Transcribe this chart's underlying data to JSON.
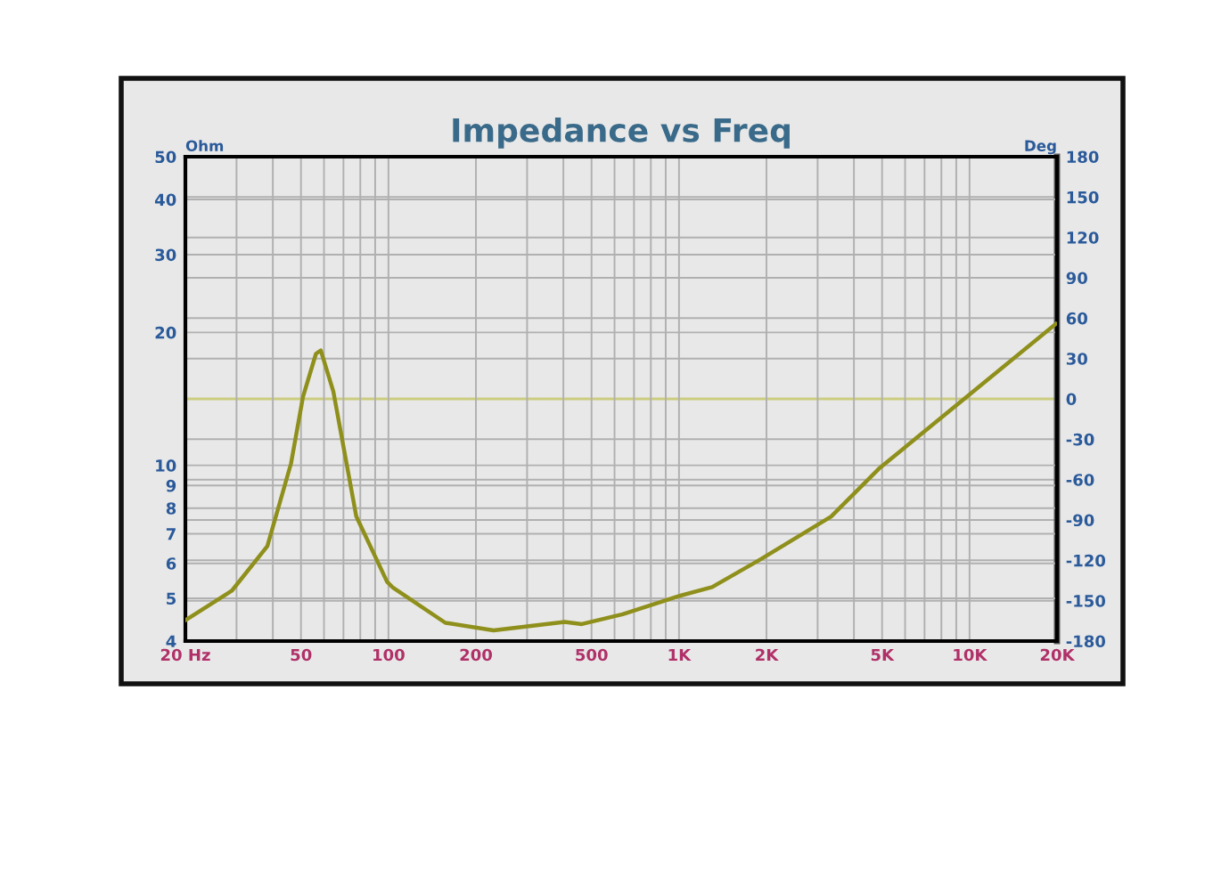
{
  "chart_data": {
    "type": "line",
    "title": "Impedance vs Freq",
    "ylabel": "Ohm",
    "y2label": "Deg",
    "x": [
      20,
      28.9,
      38.3,
      46.2,
      50.8,
      56.3,
      58.5,
      64.6,
      77.5,
      98.9,
      103.8,
      157,
      230,
      404,
      463,
      640,
      990,
      1300,
      1910,
      3340,
      4870,
      9400,
      19800
    ],
    "series": [
      {
        "color": "#8f8f1c",
        "values": [
          4.46,
          5.2,
          6.56,
          10.1,
          14.3,
          17.9,
          18.2,
          14.7,
          7.66,
          5.45,
          5.28,
          4.4,
          4.23,
          4.42,
          4.37,
          4.6,
          5.05,
          5.3,
          6.13,
          7.66,
          9.82,
          14.0,
          20.9
        ]
      }
    ],
    "log": "xy",
    "xlim": [
      20,
      20000
    ],
    "ylim": [
      4,
      50
    ],
    "y2lim": [
      -180,
      180
    ],
    "xticks": [
      {
        "value": 20,
        "label": "20 Hz"
      },
      {
        "value": 30,
        "label": null
      },
      {
        "value": 40,
        "label": null
      },
      50,
      {
        "value": 60,
        "label": null
      },
      {
        "value": 70,
        "label": null
      },
      {
        "value": 80,
        "label": null
      },
      {
        "value": 90,
        "label": null
      },
      100,
      200,
      {
        "value": 300,
        "label": null
      },
      {
        "value": 400,
        "label": null
      },
      500,
      {
        "value": 600,
        "label": null
      },
      {
        "value": 700,
        "label": null
      },
      {
        "value": 800,
        "label": null
      },
      {
        "value": 900,
        "label": null
      },
      {
        "value": 1000,
        "label": "1K"
      },
      {
        "value": 2000,
        "label": "2K"
      },
      {
        "value": 3000,
        "label": null
      },
      {
        "value": 4000,
        "label": null
      },
      {
        "value": 5000,
        "label": "5K"
      },
      {
        "value": 6000,
        "label": null
      },
      {
        "value": 7000,
        "label": null
      },
      {
        "value": 8000,
        "label": null
      },
      {
        "value": 9000,
        "label": null
      },
      {
        "value": 10000,
        "label": "10K"
      },
      {
        "value": 20000,
        "label": "20K"
      }
    ],
    "yticks": [
      4,
      5,
      6,
      7,
      8,
      9,
      10,
      20,
      30,
      40,
      50
    ],
    "y2ticks": [
      -180,
      -150,
      -120,
      -90,
      -60,
      -30,
      0,
      30,
      60,
      90,
      120,
      150,
      180
    ],
    "ref_lines": [
      {
        "axis": "y2",
        "value": 0,
        "color": "#cccc80"
      }
    ],
    "grid": true,
    "line_style": "solid"
  }
}
